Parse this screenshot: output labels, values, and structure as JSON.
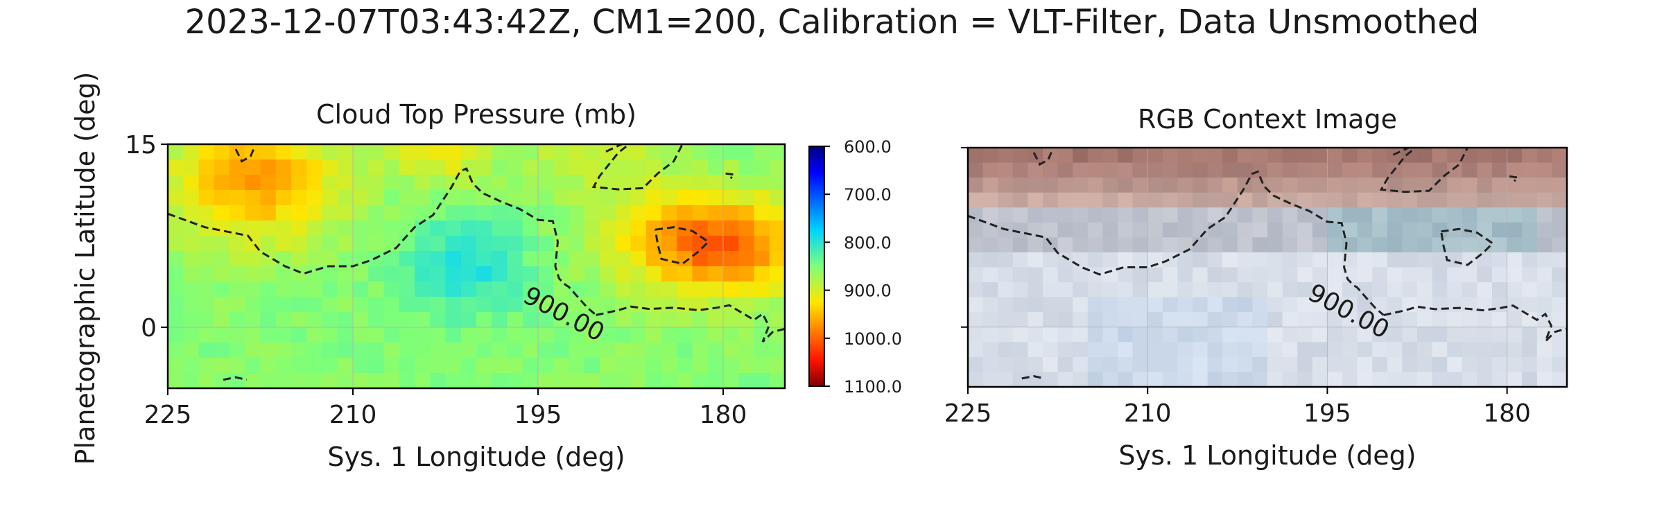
{
  "title": "2023-12-07T03:43:42Z, CM1=200, Calibration = VLT-Filter, Data Unsmoothed",
  "shared_ylabel": "Planetographic Latitude (deg)",
  "chart_data": [
    {
      "type": "heatmap",
      "title": "Cloud Top Pressure (mb)",
      "xlabel": "Sys. 1 Longitude (deg)",
      "ylabel": "Planetographic Latitude (deg)",
      "xlim": [
        225,
        175
      ],
      "ylim": [
        -5,
        15
      ],
      "x_ticks": [
        225,
        210,
        195,
        180
      ],
      "y_ticks": [
        0,
        15
      ],
      "grid": true,
      "colormap": "jet_r",
      "colorbar": {
        "ticks": [
          "600.0",
          "700.0",
          "800.0",
          "900.0",
          "1000.0",
          "1100.0"
        ],
        "range": [
          600,
          1100
        ],
        "orientation": "inverted"
      },
      "contour": {
        "level": 900,
        "label": "900.00",
        "style": "dashed",
        "color": "#222222"
      },
      "pixel_size_deg": 1.25
    },
    {
      "type": "heatmap",
      "title": "RGB Context Image",
      "xlabel": "Sys. 1 Longitude (deg)",
      "xlim": [
        225,
        175
      ],
      "ylim": [
        -5,
        15
      ],
      "x_ticks": [
        225,
        210,
        195,
        180
      ],
      "y_ticks": [
        0,
        15
      ],
      "y_tick_labels_shown": false,
      "grid": true,
      "contour": {
        "level": 900,
        "label": "900.00",
        "style": "dashed",
        "color": "#222222"
      },
      "pixel_size_deg": 1.25
    }
  ]
}
